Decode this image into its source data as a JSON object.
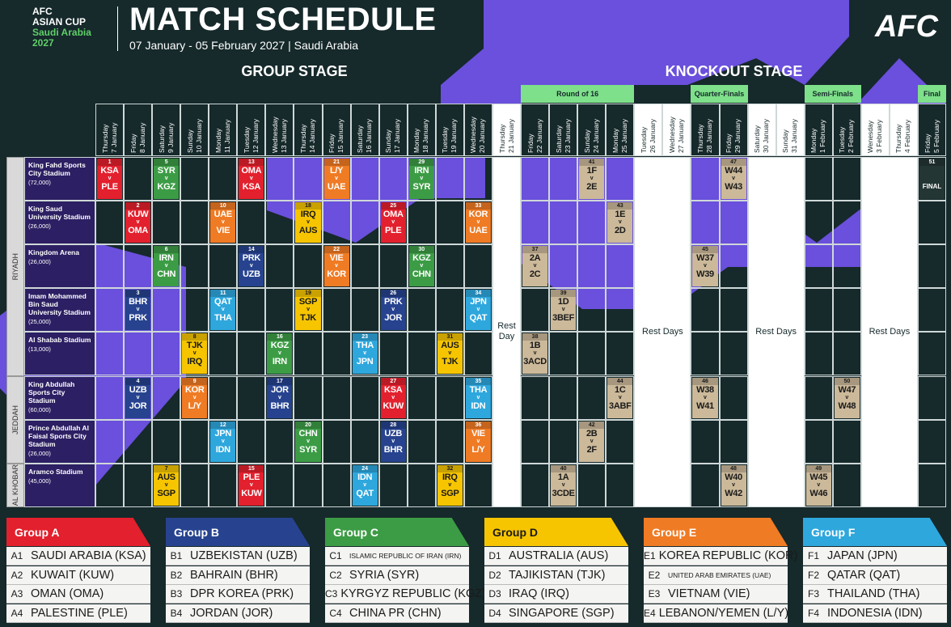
{
  "header": {
    "logo": [
      "AFC",
      "ASIAN CUP",
      "Saudi Arabia",
      "2027"
    ],
    "title": "MATCH SCHEDULE",
    "subtitle": "07 January - 05 February 2027 | Saudi Arabia",
    "brand": "AFC"
  },
  "stages": [
    "GROUP STAGE",
    "KNOCKOUT STAGE"
  ],
  "rounds": [
    "Round of 16",
    "Quarter-Finals",
    "Semi-Finals",
    "Final"
  ],
  "vs": "v",
  "rest_labels": [
    "Rest Day",
    "Rest Days",
    "Rest Days",
    "Rest Days"
  ],
  "days": [
    {
      "weekday": "Thursday",
      "date": "7 January"
    },
    {
      "weekday": "Friday",
      "date": "8 January"
    },
    {
      "weekday": "Saturday",
      "date": "9 January"
    },
    {
      "weekday": "Sunday",
      "date": "10 January"
    },
    {
      "weekday": "Monday",
      "date": "11 January"
    },
    {
      "weekday": "Tuesday",
      "date": "12 January"
    },
    {
      "weekday": "Wednesday",
      "date": "13 January"
    },
    {
      "weekday": "Thursday",
      "date": "14 January"
    },
    {
      "weekday": "Friday",
      "date": "15 January"
    },
    {
      "weekday": "Saturday",
      "date": "16 January"
    },
    {
      "weekday": "Sunday",
      "date": "17 January"
    },
    {
      "weekday": "Monday",
      "date": "18 January"
    },
    {
      "weekday": "Tuesday",
      "date": "19 January"
    },
    {
      "weekday": "Wednesday",
      "date": "20 January"
    },
    {
      "weekday": "Thursday",
      "date": "21 January"
    },
    {
      "weekday": "Friday",
      "date": "22 January"
    },
    {
      "weekday": "Saturday",
      "date": "23 January"
    },
    {
      "weekday": "Sunday",
      "date": "24 January"
    },
    {
      "weekday": "Monday",
      "date": "25 January"
    },
    {
      "weekday": "Tuesday",
      "date": "26 January"
    },
    {
      "weekday": "Wednesday",
      "date": "27 January"
    },
    {
      "weekday": "Thursday",
      "date": "28 January"
    },
    {
      "weekday": "Friday",
      "date": "29 January"
    },
    {
      "weekday": "Saturday",
      "date": "30 January"
    },
    {
      "weekday": "Sunday",
      "date": "31 January"
    },
    {
      "weekday": "Monday",
      "date": "1 February"
    },
    {
      "weekday": "Tuesday",
      "date": "2 February"
    },
    {
      "weekday": "Wenesday",
      "date": "3 February"
    },
    {
      "weekday": "Thursday",
      "date": "4 February"
    },
    {
      "weekday": "Friday",
      "date": "5 February"
    }
  ],
  "cities": [
    {
      "name": "RIYADH",
      "venues": [
        {
          "name": "King Fahd Sports City Stadium",
          "capacity": "(72,000)",
          "cells": [
            {
              "no": 1,
              "home": "KSA",
              "away": "PLE",
              "color": "#e3202d"
            },
            null,
            {
              "no": 5,
              "home": "SYR",
              "away": "KGZ",
              "color": "#3c9c45"
            },
            null,
            null,
            {
              "no": 13,
              "home": "OMA",
              "away": "KSA",
              "color": "#e3202d"
            },
            null,
            null,
            {
              "no": 21,
              "home": "L/Y",
              "away": "UAE",
              "color": "#ef7b24"
            },
            null,
            null,
            {
              "no": 29,
              "home": "IRN",
              "away": "SYR",
              "color": "#3c9c45"
            },
            null,
            null,
            null,
            null,
            null,
            {
              "no": 41,
              "home": "1F",
              "away": "2E",
              "color": "#cbb99a"
            },
            null,
            null,
            null,
            null,
            {
              "no": 47,
              "home": "W44",
              "away": "W43",
              "color": "#cbb99a"
            },
            null,
            null,
            null,
            null,
            null,
            null,
            {
              "no": 51,
              "label": "FINAL",
              "color": "#243634"
            }
          ]
        },
        {
          "name": "King Saud University Stadium",
          "capacity": "(26,000)",
          "cells": [
            null,
            {
              "no": 2,
              "home": "KUW",
              "away": "OMA",
              "color": "#e3202d"
            },
            null,
            null,
            {
              "no": 10,
              "home": "UAE",
              "away": "VIE",
              "color": "#ef7b24"
            },
            null,
            null,
            {
              "no": 18,
              "home": "IRQ",
              "away": "AUS",
              "color": "#f6c500"
            },
            null,
            null,
            {
              "no": 25,
              "home": "OMA",
              "away": "PLE",
              "color": "#e3202d"
            },
            null,
            null,
            {
              "no": 33,
              "home": "KOR",
              "away": "UAE",
              "color": "#ef7b24"
            },
            null,
            null,
            null,
            null,
            {
              "no": 43,
              "home": "1E",
              "away": "2D",
              "color": "#cbb99a"
            },
            null,
            null,
            null,
            null,
            null,
            null,
            null,
            null,
            null,
            null,
            null
          ]
        },
        {
          "name": "Kingdom Arena",
          "capacity": "(26,000)",
          "cells": [
            null,
            null,
            {
              "no": 6,
              "home": "IRN",
              "away": "CHN",
              "color": "#3c9c45"
            },
            null,
            null,
            {
              "no": 14,
              "home": "PRK",
              "away": "UZB",
              "color": "#27438f"
            },
            null,
            null,
            {
              "no": 22,
              "home": "VIE",
              "away": "KOR",
              "color": "#ef7b24"
            },
            null,
            null,
            {
              "no": 30,
              "home": "KGZ",
              "away": "CHN",
              "color": "#3c9c45"
            },
            null,
            null,
            null,
            {
              "no": 37,
              "home": "2A",
              "away": "2C",
              "color": "#cbb99a"
            },
            null,
            null,
            null,
            null,
            null,
            {
              "no": 45,
              "home": "W37",
              "away": "W39",
              "color": "#cbb99a"
            },
            null,
            null,
            null,
            null,
            null,
            null,
            null,
            null
          ]
        },
        {
          "name": "Imam Mohammed Bin Saud University Stadium",
          "capacity": "(25,000)",
          "cells": [
            null,
            {
              "no": 3,
              "home": "BHR",
              "away": "PRK",
              "color": "#27438f"
            },
            null,
            null,
            {
              "no": 11,
              "home": "QAT",
              "away": "THA",
              "color": "#2ea7dd"
            },
            null,
            null,
            {
              "no": 19,
              "home": "SGP",
              "away": "TJK",
              "color": "#f6c500"
            },
            null,
            null,
            {
              "no": 26,
              "home": "PRK",
              "away": "JOR",
              "color": "#27438f"
            },
            null,
            null,
            {
              "no": 34,
              "home": "JPN",
              "away": "QAT",
              "color": "#2ea7dd"
            },
            null,
            null,
            {
              "no": 39,
              "home": "1D",
              "away": "3BEF",
              "color": "#cbb99a"
            },
            null,
            null,
            null,
            null,
            null,
            null,
            null,
            null,
            null,
            null,
            null,
            null,
            null
          ]
        },
        {
          "name": "Al Shabab Stadium",
          "capacity": "(13,000)",
          "cells": [
            null,
            null,
            null,
            {
              "no": 8,
              "home": "TJK",
              "away": "IRQ",
              "color": "#f6c500"
            },
            null,
            null,
            {
              "no": 16,
              "home": "KGZ",
              "away": "IRN",
              "color": "#3c9c45"
            },
            null,
            null,
            {
              "no": 23,
              "home": "THA",
              "away": "JPN",
              "color": "#2ea7dd"
            },
            null,
            null,
            {
              "no": 31,
              "home": "AUS",
              "away": "TJK",
              "color": "#f6c500"
            },
            null,
            null,
            {
              "no": 38,
              "home": "1B",
              "away": "3ACD",
              "color": "#cbb99a"
            },
            null,
            null,
            null,
            null,
            null,
            null,
            null,
            null,
            null,
            null,
            null,
            null,
            null,
            null
          ]
        }
      ]
    },
    {
      "name": "JEDDAH",
      "venues": [
        {
          "name": "King Abdullah Sports City Stadium",
          "capacity": "(60,000)",
          "cells": [
            null,
            {
              "no": 4,
              "home": "UZB",
              "away": "JOR",
              "color": "#27438f"
            },
            null,
            {
              "no": 9,
              "home": "KOR",
              "away": "L/Y",
              "color": "#ef7b24"
            },
            null,
            null,
            {
              "no": 17,
              "home": "JOR",
              "away": "BHR",
              "color": "#27438f"
            },
            null,
            null,
            null,
            {
              "no": 27,
              "home": "KSA",
              "away": "KUW",
              "color": "#e3202d"
            },
            null,
            null,
            {
              "no": 35,
              "home": "THA",
              "away": "IDN",
              "color": "#2ea7dd"
            },
            null,
            null,
            null,
            null,
            {
              "no": 44,
              "home": "1C",
              "away": "3ABF",
              "color": "#cbb99a"
            },
            null,
            null,
            {
              "no": 46,
              "home": "W38",
              "away": "W41",
              "color": "#cbb99a"
            },
            null,
            null,
            null,
            null,
            {
              "no": 50,
              "home": "W47",
              "away": "W48",
              "color": "#cbb99a"
            },
            null,
            null,
            null
          ]
        },
        {
          "name": "Prince Abdullah Al Faisal Sports City Stadium",
          "capacity": "(26,000)",
          "cells": [
            null,
            null,
            null,
            null,
            {
              "no": 12,
              "home": "JPN",
              "away": "IDN",
              "color": "#2ea7dd"
            },
            null,
            null,
            {
              "no": 20,
              "home": "CHN",
              "away": "SYR",
              "color": "#3c9c45"
            },
            null,
            null,
            {
              "no": 28,
              "home": "UZB",
              "away": "BHR",
              "color": "#27438f"
            },
            null,
            null,
            {
              "no": 36,
              "home": "VIE",
              "away": "L/Y",
              "color": "#ef7b24"
            },
            null,
            null,
            null,
            {
              "no": 42,
              "home": "2B",
              "away": "2F",
              "color": "#cbb99a"
            },
            null,
            null,
            null,
            null,
            null,
            null,
            null,
            null,
            null,
            null,
            null,
            null
          ]
        }
      ]
    },
    {
      "name": "AL KHOBAR",
      "venues": [
        {
          "name": "Aramco Stadium",
          "capacity": "(45,000)",
          "cells": [
            null,
            null,
            {
              "no": 7,
              "home": "AUS",
              "away": "SGP",
              "color": "#f6c500"
            },
            null,
            null,
            {
              "no": 15,
              "home": "PLE",
              "away": "KUW",
              "color": "#e3202d"
            },
            null,
            null,
            null,
            {
              "no": 24,
              "home": "IDN",
              "away": "QAT",
              "color": "#2ea7dd"
            },
            null,
            null,
            {
              "no": 32,
              "home": "IRQ",
              "away": "SGP",
              "color": "#f6c500"
            },
            null,
            null,
            null,
            {
              "no": 40,
              "home": "1A",
              "away": "3CDE",
              "color": "#cbb99a"
            },
            null,
            null,
            null,
            null,
            null,
            {
              "no": 48,
              "home": "W40",
              "away": "W42",
              "color": "#cbb99a"
            },
            null,
            null,
            {
              "no": 49,
              "home": "W45",
              "away": "W46",
              "color": "#cbb99a"
            },
            null,
            null,
            null,
            null
          ]
        }
      ]
    }
  ],
  "groups": [
    {
      "title": "Group A",
      "color": "#e3202d",
      "teams": [
        {
          "code": "A1",
          "name": "SAUDI ARABIA (KSA)"
        },
        {
          "code": "A2",
          "name": "KUWAIT (KUW)"
        },
        {
          "code": "A3",
          "name": "OMAN (OMA)"
        },
        {
          "code": "A4",
          "name": "PALESTINE (PLE)"
        }
      ]
    },
    {
      "title": "Group B",
      "color": "#27438f",
      "teams": [
        {
          "code": "B1",
          "name": "UZBEKISTAN (UZB)"
        },
        {
          "code": "B2",
          "name": "BAHRAIN (BHR)"
        },
        {
          "code": "B3",
          "name": "DPR KOREA (PRK)"
        },
        {
          "code": "B4",
          "name": "JORDAN (JOR)"
        }
      ]
    },
    {
      "title": "Group C",
      "color": "#3c9c45",
      "teams": [
        {
          "code": "C1",
          "name": "ISLAMIC REPUBLIC OF IRAN (IRN)"
        },
        {
          "code": "C2",
          "name": "SYRIA (SYR)"
        },
        {
          "code": "C3",
          "name": "KYRGYZ REPUBLIC (KGZ)"
        },
        {
          "code": "C4",
          "name": "CHINA PR (CHN)"
        }
      ]
    },
    {
      "title": "Group D",
      "color": "#f6c500",
      "teams": [
        {
          "code": "D1",
          "name": "AUSTRALIA (AUS)"
        },
        {
          "code": "D2",
          "name": "TAJIKISTAN (TJK)"
        },
        {
          "code": "D3",
          "name": "IRAQ (IRQ)"
        },
        {
          "code": "D4",
          "name": "SINGAPORE (SGP)"
        }
      ]
    },
    {
      "title": "Group E",
      "color": "#ef7b24",
      "teams": [
        {
          "code": "E1",
          "name": "KOREA REPUBLIC (KOR)"
        },
        {
          "code": "E2",
          "name": "UNITED ARAB EMIRATES (UAE)"
        },
        {
          "code": "E3",
          "name": "VIETNAM (VIE)"
        },
        {
          "code": "E4",
          "name": "LEBANON/YEMEN (L/Y)"
        }
      ]
    },
    {
      "title": "Group F",
      "color": "#2ea7dd",
      "teams": [
        {
          "code": "F1",
          "name": "JAPAN (JPN)"
        },
        {
          "code": "F2",
          "name": "QATAR (QAT)"
        },
        {
          "code": "F3",
          "name": "THAILAND (THA)"
        },
        {
          "code": "F4",
          "name": "INDONESIA (IDN)"
        }
      ]
    }
  ]
}
